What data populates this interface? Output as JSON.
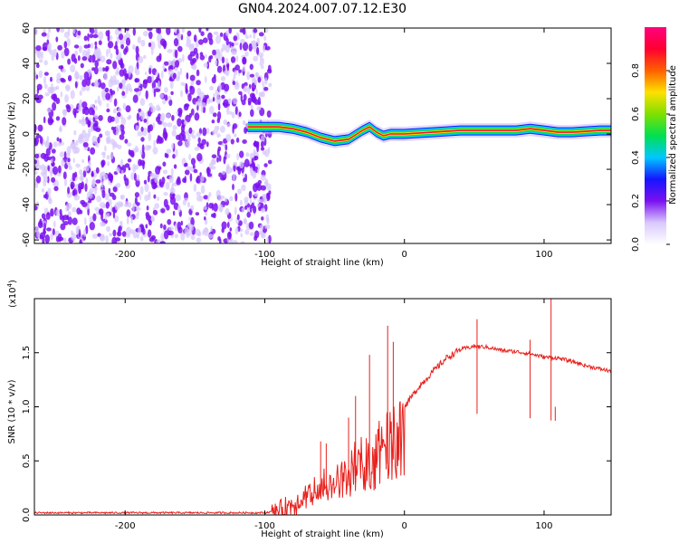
{
  "title": "GN04.2024.007.07.12.E30",
  "colors": {
    "snr_line": "#e8201c",
    "speckle_dark": "#7a10f0",
    "speckle_light": "#d6c6fb",
    "frame": "#000000"
  },
  "chart_data": [
    {
      "type": "heatmap",
      "title": "GN04.2024.007.07.12.E30",
      "xlabel": "Height of straight line (km)",
      "ylabel": "Frequency (Hz)",
      "xlim": [
        -265,
        148
      ],
      "ylim": [
        -62,
        60
      ],
      "x_ticks": [
        -200,
        -100,
        0,
        100
      ],
      "x_tick_labels": [
        "-200",
        "-100",
        "0",
        "100"
      ],
      "y_ticks": [
        -60,
        -40,
        -20,
        0,
        20,
        40,
        60
      ],
      "y_tick_labels": [
        "-60",
        "-40",
        "-20",
        "0",
        "20",
        "40",
        "60"
      ],
      "noise_region": {
        "x_from": -265,
        "x_to": -100,
        "freq_from": -62,
        "freq_to": 60
      },
      "signal_band_x": [
        -112,
        -100,
        -90,
        -80,
        -70,
        -60,
        -50,
        -40,
        -30,
        -25,
        -20,
        -15,
        -10,
        0,
        20,
        40,
        60,
        80,
        90,
        100,
        110,
        120,
        140,
        148
      ],
      "signal_band_freq": [
        4,
        4,
        4,
        3,
        1,
        -2,
        -4,
        -3,
        2,
        4,
        1,
        -1,
        0,
        0,
        1,
        2,
        2,
        2,
        3,
        2,
        1,
        1,
        2,
        2
      ],
      "colorbar": {
        "label": "Normalized spectral amplitude",
        "ticks": [
          0.0,
          0.2,
          0.4,
          0.6,
          0.8
        ],
        "tick_labels": [
          "0.0",
          "0.2",
          "0.4",
          "0.6",
          "0.8"
        ],
        "range": [
          0,
          1
        ],
        "colors": [
          "#ffffff",
          "#d9c8fd",
          "#7a10f0",
          "#1515ff",
          "#00c8ff",
          "#00e050",
          "#7fe000",
          "#ffe000",
          "#ff6000",
          "#ff0030",
          "#ff0080"
        ]
      }
    },
    {
      "type": "line",
      "xlabel": "Height of straight line (km)",
      "ylabel": "SNR (10 * v/v)",
      "scale_label": "(x10",
      "scale_exponent": "4",
      "xlim": [
        -265,
        148
      ],
      "ylim": [
        0,
        2.0
      ],
      "x_ticks": [
        -200,
        -100,
        0,
        100
      ],
      "x_tick_labels": [
        "-200",
        "-100",
        "0",
        "100"
      ],
      "y_ticks": [
        0.0,
        0.5,
        1.0,
        1.5
      ],
      "y_tick_labels": [
        "0.0",
        "0.5",
        "1.0",
        "1.5"
      ],
      "series": [
        {
          "x": [
            -265,
            -200,
            -120,
            -100,
            -90,
            -80,
            -70,
            -60,
            -50,
            -40,
            -30,
            -20,
            -10,
            0,
            10,
            20,
            30,
            40,
            50,
            60,
            70,
            80,
            90,
            100,
            110,
            120,
            130,
            140,
            148
          ],
          "values": [
            0.02,
            0.02,
            0.02,
            0.02,
            0.04,
            0.1,
            0.18,
            0.28,
            0.36,
            0.45,
            0.55,
            0.66,
            0.82,
            1.0,
            1.18,
            1.32,
            1.45,
            1.53,
            1.56,
            1.55,
            1.52,
            1.51,
            1.49,
            1.46,
            1.45,
            1.42,
            1.38,
            1.35,
            1.33
          ]
        }
      ],
      "spikes": [
        {
          "x": -60,
          "value": 0.68
        },
        {
          "x": -56,
          "value": 0.66
        },
        {
          "x": -40,
          "value": 0.9
        },
        {
          "x": -35,
          "value": 1.1
        },
        {
          "x": -25,
          "value": 1.48
        },
        {
          "x": -12,
          "value": 1.75
        },
        {
          "x": -8,
          "value": 1.6
        },
        {
          "x": 52,
          "value": 1.81
        },
        {
          "x": 90,
          "value": 1.62
        },
        {
          "x": 105,
          "value": 2.0
        },
        {
          "x": 108,
          "value": 1.0
        }
      ]
    }
  ]
}
